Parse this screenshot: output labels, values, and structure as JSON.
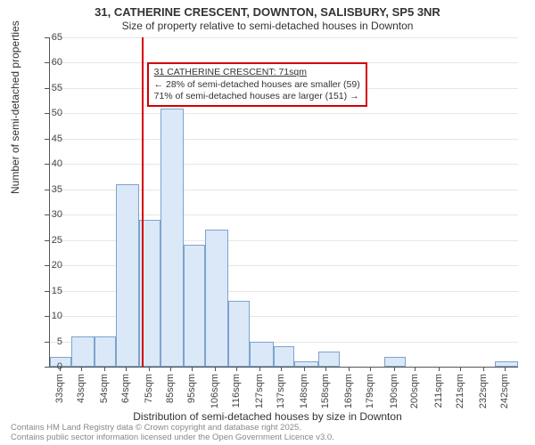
{
  "title_main": "31, CATHERINE CRESCENT, DOWNTON, SALISBURY, SP5 3NR",
  "title_sub": "Size of property relative to semi-detached houses in Downton",
  "ylabel": "Number of semi-detached properties",
  "xlabel": "Distribution of semi-detached houses by size in Downton",
  "footer_line1": "Contains HM Land Registry data © Crown copyright and database right 2025.",
  "footer_line2": "Contains public sector information licensed under the Open Government Licence v3.0.",
  "annotation": {
    "title": "31 CATHERINE CRESCENT: 71sqm",
    "line2": "← 28% of semi-detached houses are smaller (59)",
    "line3": "71% of semi-detached houses are larger (151) →"
  },
  "chart": {
    "type": "histogram",
    "bar_fill": "#dbe8f7",
    "bar_stroke": "#7ca3ce",
    "grid_color": "#e6e6e6",
    "axis_color": "#555555",
    "background": "#ffffff",
    "ref_line_color": "#d40000",
    "ref_line_x": 71,
    "xlim": [
      28,
      248
    ],
    "ylim": [
      0,
      65
    ],
    "ytick_step": 5,
    "title_fontsize": 13,
    "label_fontsize": 12,
    "tick_fontsize": 11,
    "xticks": [
      33,
      43,
      54,
      64,
      75,
      85,
      95,
      106,
      116,
      127,
      137,
      148,
      158,
      169,
      179,
      190,
      200,
      211,
      221,
      232,
      242
    ],
    "xtick_labels": [
      "33sqm",
      "43sqm",
      "54sqm",
      "64sqm",
      "75sqm",
      "85sqm",
      "95sqm",
      "106sqm",
      "116sqm",
      "127sqm",
      "137sqm",
      "148sqm",
      "158sqm",
      "169sqm",
      "179sqm",
      "190sqm",
      "200sqm",
      "211sqm",
      "221sqm",
      "232sqm",
      "242sqm"
    ],
    "bars": [
      {
        "x0": 28,
        "x1": 38,
        "y": 2
      },
      {
        "x0": 38,
        "x1": 49,
        "y": 6
      },
      {
        "x0": 49,
        "x1": 59,
        "y": 6
      },
      {
        "x0": 59,
        "x1": 70,
        "y": 36
      },
      {
        "x0": 70,
        "x1": 80,
        "y": 29
      },
      {
        "x0": 80,
        "x1": 91,
        "y": 51
      },
      {
        "x0": 91,
        "x1": 101,
        "y": 24
      },
      {
        "x0": 101,
        "x1": 112,
        "y": 27
      },
      {
        "x0": 112,
        "x1": 122,
        "y": 13
      },
      {
        "x0": 122,
        "x1": 133,
        "y": 5
      },
      {
        "x0": 133,
        "x1": 143,
        "y": 4
      },
      {
        "x0": 143,
        "x1": 154,
        "y": 1
      },
      {
        "x0": 154,
        "x1": 164,
        "y": 3
      },
      {
        "x0": 164,
        "x1": 174,
        "y": 0
      },
      {
        "x0": 174,
        "x1": 185,
        "y": 0
      },
      {
        "x0": 185,
        "x1": 195,
        "y": 2
      },
      {
        "x0": 195,
        "x1": 206,
        "y": 0
      },
      {
        "x0": 206,
        "x1": 216,
        "y": 0
      },
      {
        "x0": 216,
        "x1": 227,
        "y": 0
      },
      {
        "x0": 227,
        "x1": 237,
        "y": 0
      },
      {
        "x0": 237,
        "x1": 248,
        "y": 1
      }
    ]
  }
}
